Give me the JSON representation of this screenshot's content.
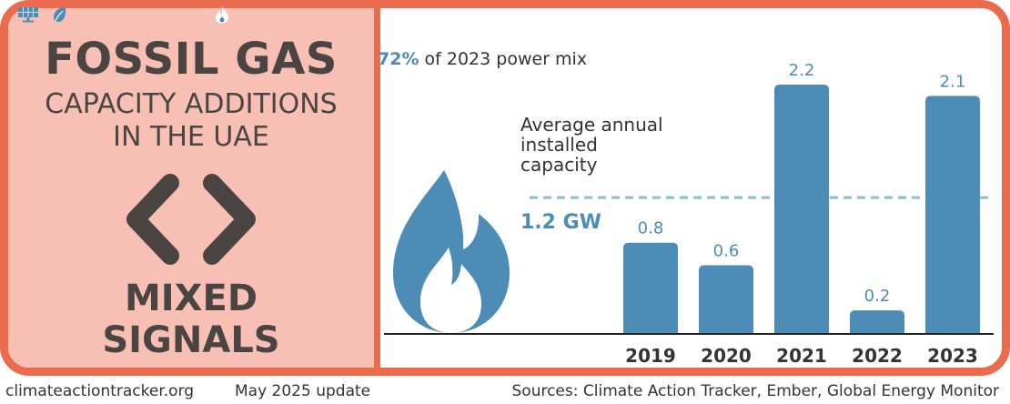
{
  "left_panel": {
    "title": "FOSSIL GAS",
    "subtitle_line1": "CAPACITY ADDITIONS",
    "subtitle_line2": "IN THE UAE",
    "signal_line1": "MIXED",
    "signal_line2": "SIGNALS",
    "signal_icon": "chevrons-icon"
  },
  "power_mix": {
    "gas_share_percent": 72,
    "pct_text": "72%",
    "label_text": "of 2023 power mix",
    "segments": [
      {
        "name": "gas",
        "icon": "flame-icon"
      },
      {
        "name": "hydro",
        "icon": "leaf-icon"
      },
      {
        "name": "solar",
        "icon": "solar-panel-icon"
      }
    ]
  },
  "chart_data": {
    "type": "bar",
    "categories": [
      "2019",
      "2020",
      "2021",
      "2022",
      "2023"
    ],
    "values": [
      0.8,
      0.6,
      2.2,
      0.2,
      2.1
    ],
    "value_labels": [
      "0.8",
      "0.6",
      "2.2",
      "0.2",
      "2.1"
    ],
    "unit": "GW",
    "ylim": [
      0,
      2.2
    ],
    "average": {
      "value": 1.2,
      "label": "Average annual installed capacity",
      "value_text": "1.2 GW"
    },
    "grid": false,
    "legend": "none"
  },
  "footer": {
    "website": "climateactiontracker.org",
    "date": "May 2025 update",
    "sources": "Sources: Climate Action Tracker, Ember, Global Energy Monitor"
  },
  "colors": {
    "accent": "#4c8cb6",
    "frame": "#ea6b4e",
    "panel": "#f8c0b4",
    "mix_light": "#d9e7f2",
    "text_dark": "#4a4443"
  }
}
